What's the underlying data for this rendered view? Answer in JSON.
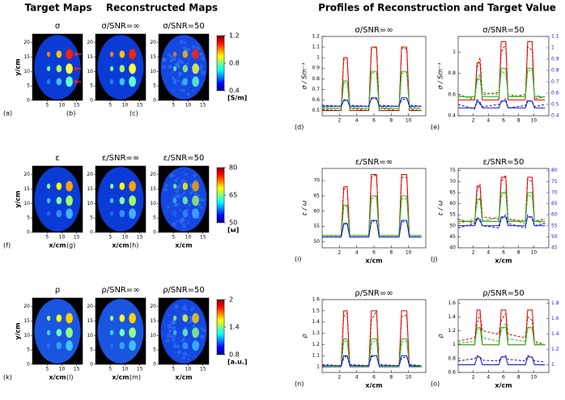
{
  "headers": {
    "target": "Target Maps",
    "reconstructed": "Reconstructed Maps",
    "profiles": "Profiles of Reconstruction and Target Value"
  },
  "map_axes": {
    "xlim": [
      0,
      17
    ],
    "ylim": [
      0,
      23
    ],
    "xticks": [
      5,
      10,
      15
    ],
    "yticks": [
      0,
      5,
      10,
      15,
      20
    ],
    "xlabel": "x/cm",
    "ylabel": "y/cm"
  },
  "map_rows": [
    {
      "maps": [
        {
          "title": "σ",
          "label": "(a)"
        },
        {
          "title": "σ/SNR=∞",
          "label": "(b)"
        },
        {
          "title": "σ/SNR=50",
          "label": "(c)"
        }
      ],
      "colorbar": {
        "lim": [
          0.4,
          1.2
        ],
        "ticks": [
          0.4,
          0.8,
          1.2
        ],
        "unit": "[S/m]"
      }
    },
    {
      "maps": [
        {
          "title": "ε",
          "label": "(f)"
        },
        {
          "title": "ε/SNR=∞",
          "label": "(g)"
        },
        {
          "title": "ε/SNR=50",
          "label": "(h)"
        }
      ],
      "colorbar": {
        "lim": [
          50,
          80
        ],
        "ticks": [
          50,
          65,
          80
        ],
        "unit": "[ω]"
      }
    },
    {
      "maps": [
        {
          "title": "ρ",
          "label": "(k)"
        },
        {
          "title": "ρ/SNR=∞",
          "label": "(l)"
        },
        {
          "title": "ρ/SNR=50",
          "label": "(m)"
        }
      ],
      "colorbar": {
        "lim": [
          0.8,
          2
        ],
        "ticks": [
          0.8,
          1.4,
          2
        ],
        "unit": "[a.u.]"
      }
    }
  ],
  "chart_data": [
    {
      "type": "line",
      "title": "σ/SNR=∞",
      "label": "(d)",
      "ylabel": "σ / Sm⁻¹",
      "x": [
        0,
        2.2,
        2.5,
        2.9,
        3.2,
        5.4,
        5.7,
        6.3,
        6.6,
        8.9,
        9.2,
        9.8,
        10.1,
        11.5
      ],
      "xlim": [
        0,
        12
      ],
      "xticks": [
        2,
        4,
        6,
        8,
        10
      ],
      "ylim": [
        0.45,
        1.2
      ],
      "yticks": [
        0.5,
        0.6,
        0.7,
        0.8,
        0.9,
        1,
        1.1,
        1.2
      ],
      "series": [
        {
          "color": "#e00000",
          "dash": false,
          "values": [
            0.5,
            0.5,
            1.0,
            1.0,
            0.5,
            0.5,
            1.1,
            1.1,
            0.5,
            0.5,
            1.1,
            1.1,
            0.5,
            0.5
          ]
        },
        {
          "color": "#e00000",
          "dash": true,
          "values": [
            0.51,
            0.5,
            0.98,
            0.99,
            0.52,
            0.5,
            1.08,
            1.1,
            0.52,
            0.5,
            1.09,
            1.08,
            0.51,
            0.5
          ]
        },
        {
          "color": "#20c020",
          "dash": false,
          "values": [
            0.52,
            0.52,
            0.78,
            0.78,
            0.52,
            0.52,
            0.87,
            0.87,
            0.52,
            0.52,
            0.87,
            0.87,
            0.52,
            0.52
          ]
        },
        {
          "color": "#20c020",
          "dash": true,
          "values": [
            0.53,
            0.52,
            0.76,
            0.77,
            0.53,
            0.52,
            0.86,
            0.85,
            0.53,
            0.52,
            0.85,
            0.86,
            0.53,
            0.52
          ]
        },
        {
          "color": "#1010d0",
          "dash": false,
          "values": [
            0.54,
            0.54,
            0.6,
            0.6,
            0.54,
            0.54,
            0.62,
            0.62,
            0.54,
            0.54,
            0.62,
            0.62,
            0.54,
            0.54
          ]
        },
        {
          "color": "#1010d0",
          "dash": true,
          "values": [
            0.55,
            0.54,
            0.59,
            0.6,
            0.55,
            0.54,
            0.61,
            0.61,
            0.55,
            0.54,
            0.6,
            0.61,
            0.55,
            0.54
          ]
        }
      ]
    },
    {
      "type": "line",
      "title": "σ/SNR=50",
      "label": "(e)",
      "ylabel": "σ / Sm⁻¹",
      "x": [
        0,
        2.2,
        2.5,
        2.9,
        3.2,
        5.4,
        5.7,
        6.3,
        6.6,
        8.9,
        9.2,
        9.8,
        10.1,
        11.5
      ],
      "xlim": [
        0,
        12
      ],
      "xticks": [
        2,
        4,
        6,
        8,
        10
      ],
      "ylim": [
        0.4,
        1.15
      ],
      "yticks": [
        0.4,
        0.6,
        0.8,
        1
      ],
      "y2lim": [
        0.4,
        1.1
      ],
      "y2ticks": [
        0.4,
        0.5,
        0.6,
        0.7,
        0.8,
        0.9,
        1,
        1.1
      ],
      "y2color": "#2020e0",
      "series": [
        {
          "color": "#e00000",
          "dash": false,
          "values": [
            0.55,
            0.55,
            0.9,
            0.9,
            0.55,
            0.55,
            1.1,
            1.1,
            0.55,
            0.55,
            1.1,
            1.1,
            0.55,
            0.55
          ]
        },
        {
          "color": "#e00000",
          "dash": true,
          "values": [
            0.6,
            0.56,
            0.85,
            0.95,
            0.6,
            0.62,
            1.0,
            1.08,
            0.58,
            0.6,
            1.05,
            1.02,
            0.56,
            0.58
          ]
        },
        {
          "color": "#20c020",
          "dash": false,
          "values": [
            0.58,
            0.58,
            0.75,
            0.75,
            0.58,
            0.58,
            0.85,
            0.85,
            0.58,
            0.58,
            0.85,
            0.85,
            0.58,
            0.58
          ]
        },
        {
          "color": "#20c020",
          "dash": true,
          "values": [
            0.6,
            0.55,
            0.72,
            0.8,
            0.62,
            0.6,
            0.82,
            0.8,
            0.6,
            0.58,
            0.82,
            0.84,
            0.6,
            0.57
          ]
        },
        {
          "color": "#1010d0",
          "dash": false,
          "axis": "y2",
          "values": [
            0.47,
            0.47,
            0.52,
            0.52,
            0.47,
            0.47,
            0.53,
            0.53,
            0.47,
            0.47,
            0.53,
            0.53,
            0.47,
            0.47
          ]
        },
        {
          "color": "#1010d0",
          "dash": true,
          "axis": "y2",
          "values": [
            0.5,
            0.46,
            0.55,
            0.5,
            0.48,
            0.5,
            0.52,
            0.55,
            0.47,
            0.49,
            0.54,
            0.52,
            0.48,
            0.5
          ]
        }
      ]
    },
    {
      "type": "line",
      "title": "ε/SNR=∞",
      "label": "(i)",
      "ylabel": "ε / ω",
      "xlabel": "x/cm",
      "x": [
        0,
        2.2,
        2.5,
        2.9,
        3.2,
        5.4,
        5.7,
        6.3,
        6.6,
        8.9,
        9.2,
        9.8,
        10.1,
        11.5
      ],
      "xlim": [
        0,
        12
      ],
      "xticks": [
        2,
        4,
        6,
        8,
        10
      ],
      "ylim": [
        48,
        74
      ],
      "yticks": [
        50,
        55,
        60,
        65,
        70
      ],
      "series": [
        {
          "color": "#e00000",
          "dash": false,
          "values": [
            52,
            52,
            68,
            68,
            52,
            52,
            72,
            72,
            52,
            52,
            72,
            72,
            52,
            52
          ]
        },
        {
          "color": "#e00000",
          "dash": true,
          "values": [
            52,
            52,
            67,
            68,
            52,
            52,
            71,
            72,
            52,
            52,
            71,
            71,
            52,
            52
          ]
        },
        {
          "color": "#20c020",
          "dash": false,
          "values": [
            52,
            52,
            62,
            62,
            52,
            52,
            65,
            65,
            52,
            52,
            65,
            65,
            52,
            52
          ]
        },
        {
          "color": "#20c020",
          "dash": true,
          "values": [
            52,
            52,
            61,
            62,
            52,
            52,
            64,
            65,
            52,
            52,
            64,
            64,
            52,
            52
          ]
        },
        {
          "color": "#1010d0",
          "dash": false,
          "values": [
            51.5,
            51.5,
            56,
            56,
            51.5,
            51.5,
            57,
            57,
            51.5,
            51.5,
            57,
            57,
            51.5,
            51.5
          ]
        },
        {
          "color": "#1010d0",
          "dash": true,
          "values": [
            51.5,
            51.5,
            55.5,
            56,
            51.5,
            51.5,
            56.5,
            57,
            51.5,
            51.5,
            56.5,
            56.5,
            51.5,
            51.5
          ]
        }
      ]
    },
    {
      "type": "line",
      "title": "ε/SNR=50",
      "label": "(j)",
      "ylabel": "ε / ω",
      "xlabel": "x/cm",
      "x": [
        0,
        2.2,
        2.5,
        2.9,
        3.2,
        5.4,
        5.7,
        6.3,
        6.6,
        8.9,
        9.2,
        9.8,
        10.1,
        11.5
      ],
      "xlim": [
        0,
        12
      ],
      "xticks": [
        2,
        4,
        6,
        8,
        10
      ],
      "ylim": [
        40,
        76
      ],
      "yticks": [
        40,
        45,
        50,
        55,
        60,
        65,
        70,
        75
      ],
      "y2lim": [
        45,
        81
      ],
      "y2ticks": [
        45,
        50,
        55,
        60,
        65,
        70,
        75,
        80
      ],
      "y2color": "#2020e0",
      "series": [
        {
          "color": "#e00000",
          "dash": false,
          "values": [
            52,
            52,
            68,
            68,
            52,
            52,
            72,
            72,
            52,
            52,
            72,
            72,
            52,
            52
          ]
        },
        {
          "color": "#e00000",
          "dash": true,
          "values": [
            53,
            51,
            66,
            69,
            54,
            53,
            70,
            73,
            53,
            52,
            71,
            70,
            52,
            53
          ]
        },
        {
          "color": "#20c020",
          "dash": false,
          "values": [
            52,
            52,
            62,
            62,
            52,
            52,
            65,
            65,
            52,
            52,
            65,
            65,
            52,
            52
          ]
        },
        {
          "color": "#20c020",
          "dash": true,
          "values": [
            51,
            53,
            60,
            63,
            52,
            54,
            63,
            66,
            53,
            51,
            64,
            63,
            52,
            51
          ]
        },
        {
          "color": "#1010d0",
          "dash": false,
          "axis": "y2",
          "values": [
            55,
            55,
            58,
            58,
            55,
            55,
            59,
            59,
            55,
            55,
            59,
            59,
            55,
            55
          ]
        },
        {
          "color": "#1010d0",
          "dash": true,
          "axis": "y2",
          "values": [
            54,
            56,
            59,
            57,
            55,
            54,
            58,
            60,
            56,
            54,
            60,
            58,
            55,
            56
          ]
        }
      ]
    },
    {
      "type": "line",
      "title": "ρ/SNR=∞",
      "label": "(n)",
      "ylabel": "ρ",
      "xlabel": "x/cm",
      "x": [
        0,
        2.2,
        2.5,
        2.9,
        3.2,
        5.4,
        5.7,
        6.3,
        6.6,
        8.9,
        9.2,
        9.8,
        10.1,
        11.5
      ],
      "xlim": [
        0,
        12
      ],
      "xticks": [
        2,
        4,
        6,
        8,
        10
      ],
      "ylim": [
        0.95,
        1.6
      ],
      "yticks": [
        1,
        1.1,
        1.2,
        1.3,
        1.4,
        1.5,
        1.6
      ],
      "series": [
        {
          "color": "#e00000",
          "dash": false,
          "values": [
            1,
            1,
            1.5,
            1.5,
            1,
            1,
            1.5,
            1.5,
            1,
            1,
            1.5,
            1.5,
            1,
            1
          ]
        },
        {
          "color": "#e00000",
          "dash": true,
          "values": [
            1,
            1,
            1.45,
            1.48,
            1.02,
            1,
            1.42,
            1.5,
            1,
            1,
            1.45,
            1.46,
            1.01,
            1
          ]
        },
        {
          "color": "#20c020",
          "dash": false,
          "values": [
            1,
            1,
            1.25,
            1.25,
            1,
            1,
            1.25,
            1.25,
            1,
            1,
            1.25,
            1.25,
            1,
            1
          ]
        },
        {
          "color": "#20c020",
          "dash": true,
          "values": [
            1,
            1,
            1.22,
            1.24,
            1.02,
            1,
            1.2,
            1.25,
            1,
            1,
            1.22,
            1.23,
            1.01,
            1
          ]
        },
        {
          "color": "#1010d0",
          "dash": false,
          "values": [
            1.01,
            1.01,
            1.1,
            1.1,
            1.01,
            1.01,
            1.1,
            1.1,
            1.01,
            1.01,
            1.1,
            1.1,
            1.01,
            1.01
          ]
        },
        {
          "color": "#1010d0",
          "dash": true,
          "values": [
            1.02,
            1.01,
            1.08,
            1.1,
            1.02,
            1.01,
            1.09,
            1.1,
            1.02,
            1.01,
            1.08,
            1.09,
            1.02,
            1.01
          ]
        }
      ]
    },
    {
      "type": "line",
      "title": "ρ/SNR=50",
      "label": "(o)",
      "ylabel": "ρ",
      "xlabel": "x/cm",
      "x": [
        0,
        2.2,
        2.5,
        2.9,
        3.2,
        5.4,
        5.7,
        6.3,
        6.6,
        8.9,
        9.2,
        9.8,
        10.1,
        11.5
      ],
      "xlim": [
        0,
        12
      ],
      "xticks": [
        2,
        4,
        6,
        8,
        10
      ],
      "ylim": [
        0.6,
        1.65
      ],
      "yticks": [
        0.6,
        0.8,
        1,
        1.2,
        1.4,
        1.6
      ],
      "y2lim": [
        0.9,
        1.85
      ],
      "y2ticks": [
        1,
        1.2,
        1.4,
        1.6,
        1.8
      ],
      "y2color": "#2020e0",
      "series": [
        {
          "color": "#e00000",
          "dash": false,
          "values": [
            1,
            1,
            1.5,
            1.5,
            1,
            1,
            1.5,
            1.5,
            1,
            1,
            1.5,
            1.5,
            1,
            1
          ]
        },
        {
          "color": "#e00000",
          "dash": true,
          "values": [
            1.05,
            1.1,
            1.3,
            1.45,
            1.2,
            1.15,
            1.35,
            1.45,
            1.15,
            1.1,
            1.4,
            1.35,
            1.05,
            1
          ]
        },
        {
          "color": "#20c020",
          "dash": false,
          "values": [
            1,
            1,
            1.25,
            1.25,
            1,
            1,
            1.25,
            1.25,
            1,
            1,
            1.25,
            1.25,
            1,
            1
          ]
        },
        {
          "color": "#20c020",
          "dash": true,
          "values": [
            1.02,
            1.05,
            1.2,
            1.25,
            1.1,
            1.05,
            1.2,
            1.3,
            1.08,
            1.05,
            1.25,
            1.22,
            1.02,
            1
          ]
        },
        {
          "color": "#1010d0",
          "dash": false,
          "axis": "y2",
          "values": [
            1,
            1,
            1.1,
            1.1,
            1,
            1,
            1.1,
            1.1,
            1,
            1,
            1.1,
            1.1,
            1,
            1
          ]
        },
        {
          "color": "#1010d0",
          "dash": true,
          "axis": "y2",
          "values": [
            1.05,
            1.08,
            1.12,
            1.1,
            1.06,
            1.05,
            1.1,
            1.12,
            1.07,
            1.05,
            1.12,
            1.1,
            1.05,
            1.04
          ]
        }
      ]
    }
  ]
}
